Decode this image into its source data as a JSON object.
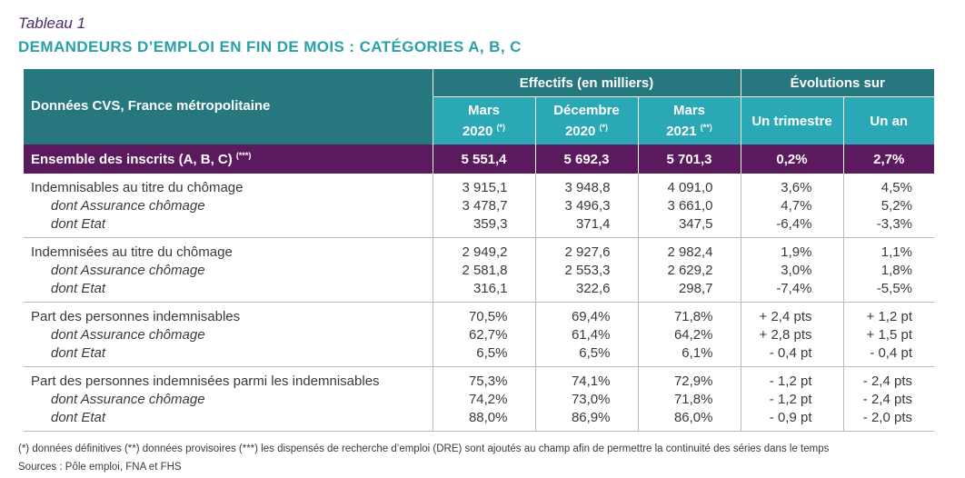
{
  "caption": "Tableau 1",
  "title": "DEMANDEURS D’EMPLOI EN FIN DE MOIS : CATÉGORIES A, B, C",
  "header": {
    "row_label": "Données CVS, France métropolitaine",
    "group1": "Effectifs (en milliers)",
    "group2": "Évolutions sur",
    "cols": [
      {
        "l1": "Mars",
        "l2": "2020",
        "note": "(*)"
      },
      {
        "l1": "Décembre",
        "l2": "2020",
        "note": "(*)"
      },
      {
        "l1": "Mars",
        "l2": "2021",
        "note": "(**)"
      }
    ],
    "ev1": "Un trimestre",
    "ev2": "Un an"
  },
  "total": {
    "label": "Ensemble des inscrits (A, B, C)",
    "note": "(***)",
    "values": [
      "5 551,4",
      "5 692,3",
      "5 701,3",
      "0,2%",
      "2,7%"
    ]
  },
  "groups": [
    {
      "label": "Indemnisables au titre du chômage",
      "sub": [
        "dont Assurance chômage",
        "dont Etat"
      ],
      "cols": [
        [
          "3 915,1",
          "3 478,7",
          "359,3"
        ],
        [
          "3 948,8",
          "3 496,3",
          "371,4"
        ],
        [
          "4 091,0",
          "3 661,0",
          "347,5"
        ],
        [
          "3,6%",
          "4,7%",
          "-6,4%"
        ],
        [
          "4,5%",
          "5,2%",
          "-3,3%"
        ]
      ]
    },
    {
      "label": "Indemnisées au titre du chômage",
      "sub": [
        "dont Assurance chômage",
        "dont Etat"
      ],
      "cols": [
        [
          "2 949,2",
          "2 581,8",
          "316,1"
        ],
        [
          "2 927,6",
          "2 553,3",
          "322,6"
        ],
        [
          "2 982,4",
          "2 629,2",
          "298,7"
        ],
        [
          "1,9%",
          "3,0%",
          "-7,4%"
        ],
        [
          "1,1%",
          "1,8%",
          "-5,5%"
        ]
      ]
    },
    {
      "label": "Part des personnes indemnisables",
      "sub": [
        "dont Assurance chômage",
        "dont Etat"
      ],
      "cols": [
        [
          "70,5%",
          "62,7%",
          "6,5%"
        ],
        [
          "69,4%",
          "61,4%",
          "6,5%"
        ],
        [
          "71,8%",
          "64,2%",
          "6,1%"
        ],
        [
          "+ 2,4 pts",
          "+ 2,8 pts",
          "- 0,4 pt"
        ],
        [
          "+ 1,2 pt",
          "+ 1,5 pt",
          "- 0,4 pt"
        ]
      ]
    },
    {
      "label": "Part des personnes indemnisées parmi les indemnisables",
      "sub": [
        "dont Assurance chômage",
        "dont Etat"
      ],
      "cols": [
        [
          "75,3%",
          "74,2%",
          "88,0%"
        ],
        [
          "74,1%",
          "73,0%",
          "86,9%"
        ],
        [
          "72,9%",
          "71,8%",
          "86,0%"
        ],
        [
          "- 1,2 pt",
          "- 1,2 pt",
          "- 0,9 pt"
        ],
        [
          "- 2,4 pts",
          "- 2,4 pts",
          "- 2,0 pts"
        ]
      ]
    }
  ],
  "footnote": "(*) données définitives (**) données provisoires (***) les dispensés de recherche d’emploi (DRE) sont ajoutés au champ afin de permettre la continuité des séries dans le temps",
  "sources": "Sources : Pôle emploi, FNA et FHS"
}
